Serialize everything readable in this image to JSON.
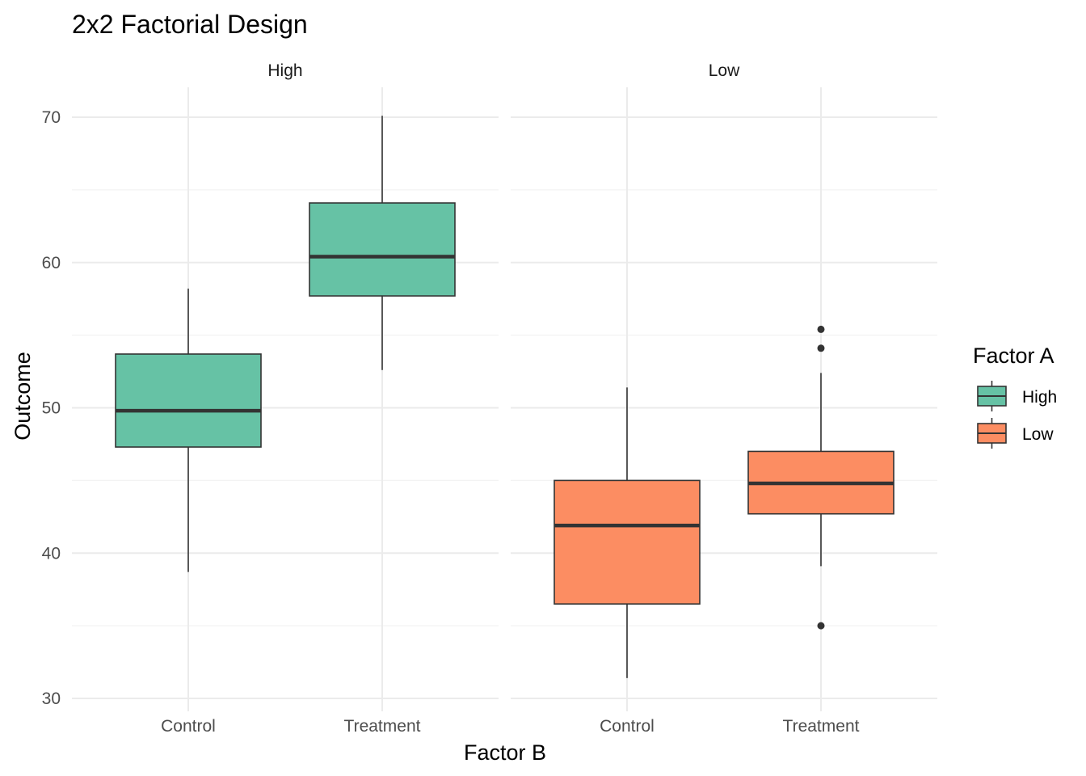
{
  "chart_data": {
    "type": "boxplot",
    "title": "2x2 Factorial Design",
    "xlabel": "Factor B",
    "ylabel": "Outcome",
    "ylim": [
      30,
      70
    ],
    "yticks": [
      30,
      40,
      50,
      60,
      70
    ],
    "categories": [
      "Control",
      "Treatment"
    ],
    "facets": [
      {
        "label": "High",
        "boxes": [
          {
            "category": "Control",
            "min": 38.7,
            "q1": 47.3,
            "median": 49.8,
            "q3": 53.7,
            "max": 58.2,
            "outliers": []
          },
          {
            "category": "Treatment",
            "min": 52.6,
            "q1": 57.7,
            "median": 60.4,
            "q3": 64.1,
            "max": 70.1,
            "outliers": []
          }
        ]
      },
      {
        "label": "Low",
        "boxes": [
          {
            "category": "Control",
            "min": 31.4,
            "q1": 36.5,
            "median": 41.9,
            "q3": 45.0,
            "max": 51.4,
            "outliers": []
          },
          {
            "category": "Treatment",
            "min": 39.1,
            "q1": 42.7,
            "median": 44.8,
            "q3": 47.0,
            "max": 52.4,
            "outliers": [
              35.0,
              54.1,
              55.4
            ]
          }
        ]
      }
    ],
    "legend": {
      "title": "Factor A",
      "position": "right",
      "items": [
        {
          "label": "High",
          "color": "#66C2A5"
        },
        {
          "label": "Low",
          "color": "#FC8D62"
        }
      ]
    },
    "grid": true
  }
}
